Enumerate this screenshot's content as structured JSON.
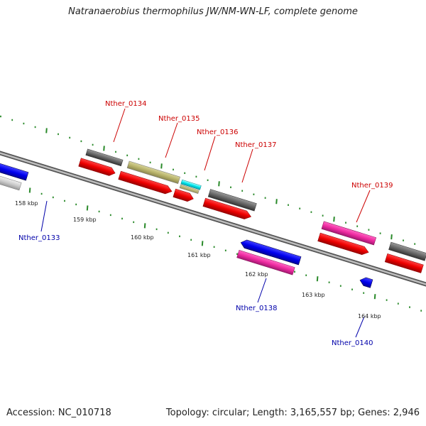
{
  "title": "Natranaerobius thermophilus JW/NM-WN-LF, complete genome",
  "footer": {
    "accession": "Accession: NC_010718",
    "summary": "Topology: circular; Length: 3,165,557 bp; Genes: 2,946"
  },
  "colors": {
    "label_forward": "#cc0000",
    "label_reverse": "#0000aa",
    "tick": "#2a8a2a",
    "backbone": "#888888"
  },
  "scale_labels": [
    "158 kbp",
    "159 kbp",
    "160 kbp",
    "161 kbp",
    "162 kbp",
    "163 kbp",
    "164 kbp"
  ],
  "gene_labels": {
    "nther_0133": "Nther_0133",
    "nther_0134": "Nther_0134",
    "nther_0135": "Nther_0135",
    "nther_0136": "Nther_0136",
    "nther_0137": "Nther_0137",
    "nther_0138": "Nther_0138",
    "nther_0139": "Nther_0139",
    "nther_0140": "Nther_0140"
  }
}
